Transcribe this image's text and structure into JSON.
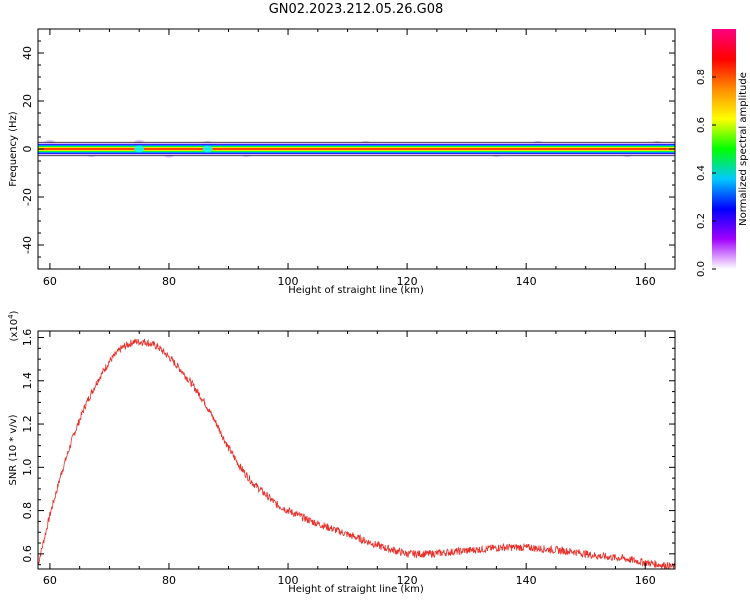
{
  "title": "GN02.2023.212.05.26.G08",
  "chart_data": [
    {
      "type": "heatmap",
      "xlabel": "Height of straight line (km)",
      "ylabel": "Frequency (Hz)",
      "xlim": [
        58,
        165
      ],
      "ylim": [
        -50,
        50
      ],
      "xticks": [
        60,
        80,
        100,
        120,
        140,
        160
      ],
      "yticks": [
        -40,
        -20,
        0,
        20,
        40
      ],
      "colorbar": {
        "label": "Normalized spectral amplitude",
        "range": [
          0,
          1
        ],
        "ticks": [
          "0.0",
          "0.2",
          "0.4",
          "0.6",
          "0.8"
        ],
        "colors": [
          "#ffffff",
          "#a000ff",
          "#0000ff",
          "#00c8ff",
          "#00ff00",
          "#ffff00",
          "#ff8c00",
          "#ff0000",
          "#ff0080"
        ]
      },
      "band": {
        "frequency_hz": 0,
        "halfwidth_hz": 1.5,
        "amplitude": 0.9
      },
      "blobs": [
        {
          "x": 60,
          "f": 1.0
        },
        {
          "x": 67,
          "f": -0.5
        },
        {
          "x": 75,
          "f": 1.0
        },
        {
          "x": 80,
          "f": -0.8
        },
        {
          "x": 86.5,
          "f": 0.5
        },
        {
          "x": 93,
          "f": -0.5
        },
        {
          "x": 113,
          "f": 0.5
        },
        {
          "x": 135,
          "f": -0.5
        },
        {
          "x": 142,
          "f": 0.5
        },
        {
          "x": 157,
          "f": -0.5
        },
        {
          "x": 162,
          "f": 0.5
        }
      ]
    },
    {
      "type": "line",
      "xlabel": "Height of straight line (km)",
      "ylabel": "SNR (10 * v/v)",
      "y_multiplier_label": "(x10",
      "y_multiplier_exp": "4",
      "xlim": [
        58,
        165
      ],
      "ylim": [
        0.53,
        1.63
      ],
      "xticks": [
        60,
        80,
        100,
        120,
        140,
        160
      ],
      "yticks": [
        "0.6",
        "0.8",
        "1.0",
        "1.2",
        "1.4",
        "1.6"
      ],
      "series": [
        {
          "color": "#e8302a",
          "x": [
            58,
            60,
            62,
            64,
            66,
            68,
            70,
            72,
            74,
            76,
            78,
            80,
            82,
            84,
            86,
            88,
            90,
            92,
            94,
            96,
            98,
            100,
            104,
            108,
            112,
            116,
            120,
            124,
            128,
            132,
            136,
            140,
            144,
            148,
            152,
            156,
            160,
            165
          ],
          "values": [
            0.55,
            0.78,
            0.98,
            1.15,
            1.29,
            1.4,
            1.49,
            1.55,
            1.58,
            1.58,
            1.56,
            1.51,
            1.45,
            1.38,
            1.3,
            1.2,
            1.09,
            1.0,
            0.93,
            0.88,
            0.83,
            0.8,
            0.75,
            0.71,
            0.67,
            0.63,
            0.6,
            0.6,
            0.61,
            0.62,
            0.63,
            0.63,
            0.62,
            0.61,
            0.59,
            0.58,
            0.56,
            0.54
          ]
        }
      ]
    }
  ]
}
